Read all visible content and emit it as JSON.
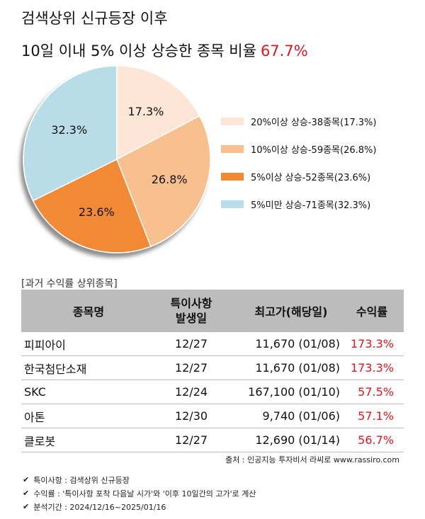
{
  "title_line1": "검색상위 신규등장 이후",
  "title_line2": "10일 이내 5% 이상 상승한 종목 비율",
  "title_highlight": "67.7%",
  "chart_data": {
    "type": "pie",
    "start_angle_deg": 0,
    "direction": "clockwise",
    "slices": [
      {
        "label": "17.3%",
        "value": 17.3,
        "color": "#fde6d6",
        "legend": "20%이상 상승-38종목(17.3%)"
      },
      {
        "label": "26.8%",
        "value": 26.8,
        "color": "#f9c08f",
        "legend": "10%이상 상승-59종목(26.8%)"
      },
      {
        "label": "23.6%",
        "value": 23.6,
        "color": "#f28a34",
        "legend": "5%이상 상승-52종목(23.6%)"
      },
      {
        "label": "32.3%",
        "value": 32.3,
        "color": "#b9dde8",
        "legend": "5%미만 상승-71종목(32.3%)"
      }
    ],
    "legend_position": "right"
  },
  "table": {
    "section_label": "[과거 수익률 상위종목]",
    "headers": {
      "name": "종목명",
      "date_line1": "특이사항",
      "date_line2": "발생일",
      "high": "최고가(해당일)",
      "return": "수익률"
    },
    "rows": [
      {
        "name": "피피아이",
        "date": "12/27",
        "high": "11,670 (01/08)",
        "return": "173.3%"
      },
      {
        "name": "한국첨단소재",
        "date": "12/27",
        "high": "11,670 (01/08)",
        "return": "173.3%"
      },
      {
        "name": "SKC",
        "date": "12/24",
        "high": "167,100 (01/10)",
        "return": "57.5%"
      },
      {
        "name": "아톤",
        "date": "12/30",
        "high": "9,740 (01/06)",
        "return": "57.1%"
      },
      {
        "name": "클로봇",
        "date": "12/27",
        "high": "12,690 (01/14)",
        "return": "56.7%"
      }
    ]
  },
  "source": "출처 : 인공지능 투자비서 라씨로 www.rassiro.com",
  "notes": [
    "특이사항 : 검색상위 신규등장",
    "수익률 : '특이사항 포착 다음날 시가'와 '이후 10일간의 고가'로 계산",
    "분석기간 : 2024/12/16~2025/01/16"
  ],
  "icons": {
    "note_bullet": "check-icon"
  }
}
